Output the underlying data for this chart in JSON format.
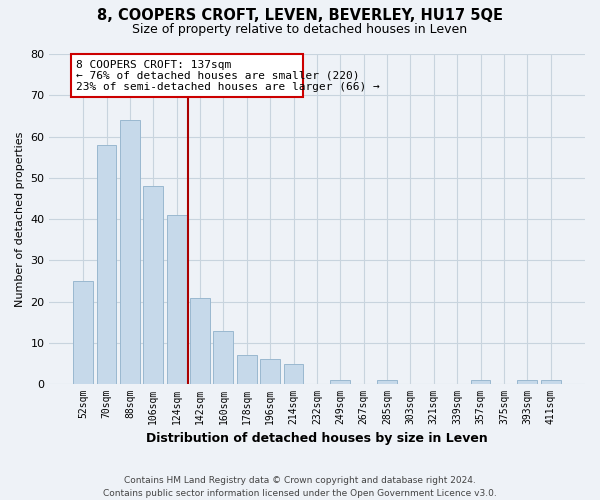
{
  "title": "8, COOPERS CROFT, LEVEN, BEVERLEY, HU17 5QE",
  "subtitle": "Size of property relative to detached houses in Leven",
  "xlabel": "Distribution of detached houses by size in Leven",
  "ylabel": "Number of detached properties",
  "categories": [
    "52sqm",
    "70sqm",
    "88sqm",
    "106sqm",
    "124sqm",
    "142sqm",
    "160sqm",
    "178sqm",
    "196sqm",
    "214sqm",
    "232sqm",
    "249sqm",
    "267sqm",
    "285sqm",
    "303sqm",
    "321sqm",
    "339sqm",
    "357sqm",
    "375sqm",
    "393sqm",
    "411sqm"
  ],
  "values": [
    25,
    58,
    64,
    48,
    41,
    21,
    13,
    7,
    6,
    5,
    0,
    1,
    0,
    1,
    0,
    0,
    0,
    1,
    0,
    1,
    1
  ],
  "bar_color": "#c6d9ea",
  "bar_edge_color": "#9ab8d0",
  "vline_color": "#aa0000",
  "vline_x": 4.5,
  "box_text_line1": "8 COOPERS CROFT: 137sqm",
  "box_text_line2": "← 76% of detached houses are smaller (220)",
  "box_text_line3": "23% of semi-detached houses are larger (66) →",
  "box_edge_color": "#cc0000",
  "ylim": [
    0,
    80
  ],
  "yticks": [
    0,
    10,
    20,
    30,
    40,
    50,
    60,
    70,
    80
  ],
  "grid_color": "#c8d4de",
  "background_color": "#eef2f7",
  "footnote_line1": "Contains HM Land Registry data © Crown copyright and database right 2024.",
  "footnote_line2": "Contains public sector information licensed under the Open Government Licence v3.0."
}
